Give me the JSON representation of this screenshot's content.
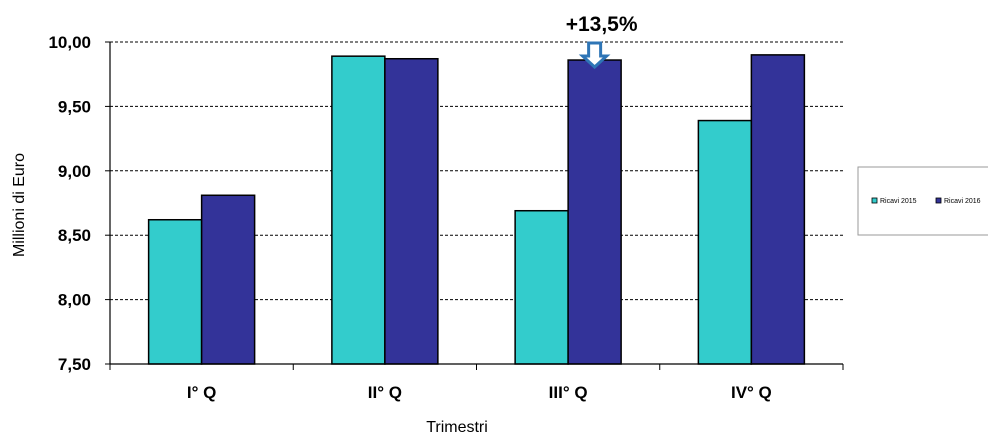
{
  "chart_data": {
    "type": "bar",
    "title": "",
    "xlabel": "Trimestri",
    "ylabel": "Millioni di Euro",
    "categories": [
      "I° Q",
      "II° Q",
      "III° Q",
      "IV° Q"
    ],
    "series": [
      {
        "name": "Ricavi 2015",
        "color": "#33cccc",
        "values": [
          8.62,
          9.89,
          8.69,
          9.39
        ]
      },
      {
        "name": "Ricavi 2016",
        "color": "#333399",
        "values": [
          8.81,
          9.87,
          9.86,
          9.9
        ]
      }
    ],
    "ylim": [
      7.5,
      10.0
    ],
    "yticks": [
      "7,50",
      "8,00",
      "8,50",
      "9,00",
      "9,50",
      "10,00"
    ],
    "grid": true,
    "legend": "right",
    "annotations": [
      {
        "text": "+13,5%",
        "category": "III° Q",
        "series": "Ricavi 2016",
        "marker": "down-arrow-icon",
        "color": "#2e75b6"
      }
    ]
  }
}
